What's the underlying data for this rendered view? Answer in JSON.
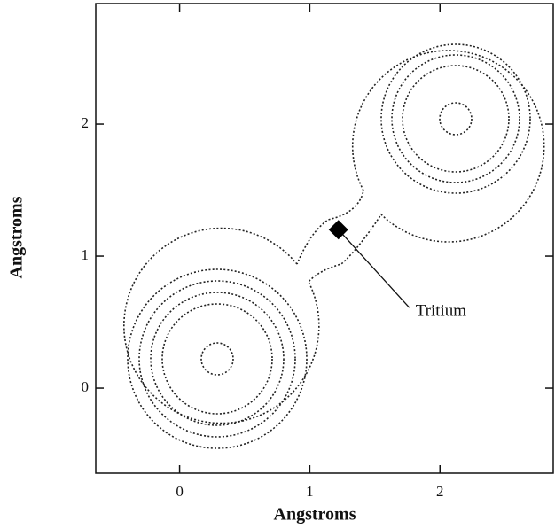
{
  "chart_data": {
    "type": "contour",
    "xlabel": "Angstroms",
    "ylabel": "Angstroms",
    "xlim": [
      -0.644,
      2.87
    ],
    "ylim": [
      -0.644,
      2.913
    ],
    "xticks": [
      0,
      1,
      2
    ],
    "yticks": [
      0,
      1,
      2
    ],
    "point": {
      "label": "Tritium",
      "x": 1.22,
      "y": 1.2
    }
  }
}
